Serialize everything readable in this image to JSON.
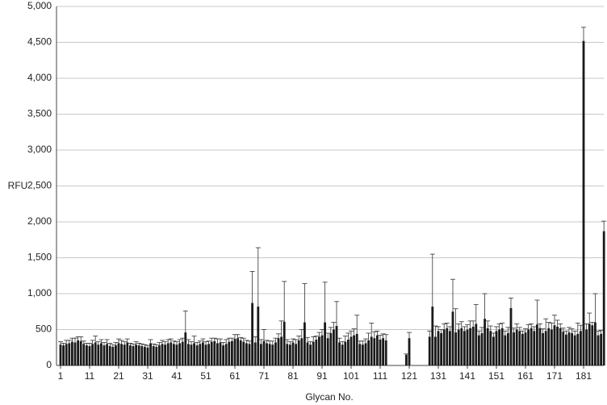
{
  "chart_data": {
    "type": "bar",
    "xlabel": "Glycan No.",
    "ylabel": "RFU",
    "categories": [
      "1",
      null,
      null,
      null,
      null,
      null,
      null,
      null,
      null,
      null,
      "11",
      null,
      null,
      null,
      null,
      null,
      null,
      null,
      null,
      null,
      "21",
      null,
      null,
      null,
      null,
      null,
      null,
      null,
      null,
      null,
      "31",
      null,
      null,
      null,
      null,
      null,
      null,
      null,
      null,
      null,
      "41",
      null,
      null,
      null,
      null,
      null,
      null,
      null,
      null,
      null,
      "51",
      null,
      null,
      null,
      null,
      null,
      null,
      null,
      null,
      null,
      "61",
      null,
      null,
      null,
      null,
      null,
      null,
      null,
      null,
      null,
      "71",
      null,
      null,
      null,
      null,
      null,
      null,
      null,
      null,
      null,
      "81",
      null,
      null,
      null,
      null,
      null,
      null,
      null,
      null,
      null,
      "91",
      null,
      null,
      null,
      null,
      null,
      null,
      null,
      null,
      null,
      "101",
      null,
      null,
      null,
      null,
      null,
      null,
      null,
      null,
      null,
      "111",
      null,
      null,
      null,
      null,
      null,
      null,
      null,
      null,
      null,
      "121",
      null,
      null,
      null,
      null,
      null,
      null,
      null,
      null,
      null,
      "131",
      null,
      null,
      null,
      null,
      null,
      null,
      null,
      null,
      null,
      "141",
      null,
      null,
      null,
      null,
      null,
      null,
      null,
      null,
      null,
      "151",
      null,
      null,
      null,
      null,
      null,
      null,
      null,
      null,
      null,
      "161",
      null,
      null,
      null,
      null,
      null,
      null,
      null,
      null,
      null,
      "171",
      null,
      null,
      null,
      null,
      null,
      null,
      null,
      null,
      null,
      "181",
      null,
      null,
      null,
      null,
      null,
      null,
      null
    ],
    "values": [
      290,
      280,
      300,
      310,
      330,
      320,
      350,
      340,
      300,
      280,
      270,
      300,
      320,
      290,
      310,
      280,
      300,
      270,
      260,
      280,
      310,
      300,
      290,
      320,
      280,
      270,
      290,
      280,
      270,
      260,
      250,
      310,
      270,
      260,
      280,
      300,
      290,
      310,
      320,
      300,
      290,
      310,
      330,
      460,
      300,
      290,
      310,
      280,
      300,
      320,
      290,
      300,
      330,
      340,
      310,
      320,
      280,
      300,
      330,
      340,
      370,
      380,
      350,
      330,
      310,
      300,
      870,
      320,
      820,
      300,
      340,
      310,
      300,
      290,
      320,
      380,
      400,
      610,
      300,
      290,
      320,
      300,
      350,
      380,
      600,
      320,
      290,
      330,
      360,
      400,
      420,
      600,
      380,
      450,
      500,
      550,
      320,
      290,
      330,
      360,
      400,
      420,
      440,
      300,
      290,
      310,
      350,
      400,
      380,
      420,
      360,
      380,
      350,
      0,
      0,
      0,
      0,
      0,
      0,
      150,
      380,
      0,
      0,
      0,
      0,
      0,
      0,
      400,
      820,
      400,
      480,
      450,
      500,
      520,
      480,
      750,
      460,
      500,
      520,
      480,
      500,
      520,
      540,
      580,
      420,
      450,
      650,
      520,
      480,
      400,
      480,
      500,
      520,
      420,
      450,
      800,
      460,
      500,
      480,
      440,
      460,
      500,
      520,
      480,
      570,
      520,
      450,
      480,
      520,
      500,
      560,
      540,
      520,
      470,
      430,
      460,
      450,
      420,
      440,
      480,
      4520,
      500,
      580,
      560,
      600,
      420,
      440,
      1870
    ],
    "errors": [
      40,
      30,
      50,
      40,
      50,
      60,
      50,
      60,
      40,
      30,
      40,
      50,
      90,
      40,
      50,
      40,
      60,
      40,
      30,
      40,
      60,
      50,
      40,
      50,
      30,
      30,
      40,
      30,
      30,
      30,
      30,
      50,
      30,
      30,
      40,
      50,
      40,
      50,
      50,
      40,
      40,
      50,
      50,
      300,
      60,
      40,
      100,
      40,
      40,
      50,
      40,
      40,
      50,
      40,
      60,
      50,
      40,
      60,
      50,
      40,
      60,
      50,
      40,
      50,
      40,
      40,
      440,
      80,
      820,
      60,
      160,
      40,
      40,
      50,
      60,
      60,
      220,
      560,
      60,
      40,
      50,
      60,
      60,
      120,
      540,
      70,
      40,
      70,
      50,
      60,
      80,
      560,
      70,
      80,
      100,
      340,
      60,
      40,
      80,
      90,
      80,
      90,
      260,
      40,
      50,
      60,
      100,
      190,
      90,
      60,
      60,
      60,
      80,
      0,
      0,
      0,
      0,
      0,
      0,
      10,
      80,
      0,
      0,
      0,
      0,
      0,
      0,
      80,
      730,
      150,
      60,
      50,
      80,
      70,
      60,
      450,
      330,
      80,
      90,
      60,
      70,
      100,
      80,
      270,
      60,
      80,
      350,
      100,
      70,
      50,
      60,
      80,
      70,
      60,
      80,
      140,
      60,
      80,
      50,
      40,
      50,
      70,
      60,
      60,
      340,
      60,
      60,
      170,
      80,
      90,
      140,
      90,
      60,
      50,
      50,
      70,
      60,
      60,
      150,
      80,
      190,
      80,
      150,
      40,
      400,
      60,
      50,
      140
    ],
    "color": "#1a1a1a",
    "ylim": [
      0,
      5000
    ],
    "yticks": [
      0,
      {
        "value": 500,
        "label": "500"
      },
      {
        "value": 1000,
        "label": "1,000"
      },
      {
        "value": 1500,
        "label": "1,500"
      },
      {
        "value": 2000,
        "label": "2,000"
      },
      {
        "value": 2500,
        "label": "2,500"
      },
      {
        "value": 3000,
        "label": "3,000"
      },
      {
        "value": 3500,
        "label": "3,500"
      },
      {
        "value": 4000,
        "label": "4,000"
      },
      {
        "value": 4500,
        "label": "4,500"
      },
      {
        "value": 5000,
        "label": "5,000"
      }
    ],
    "grid": true
  }
}
